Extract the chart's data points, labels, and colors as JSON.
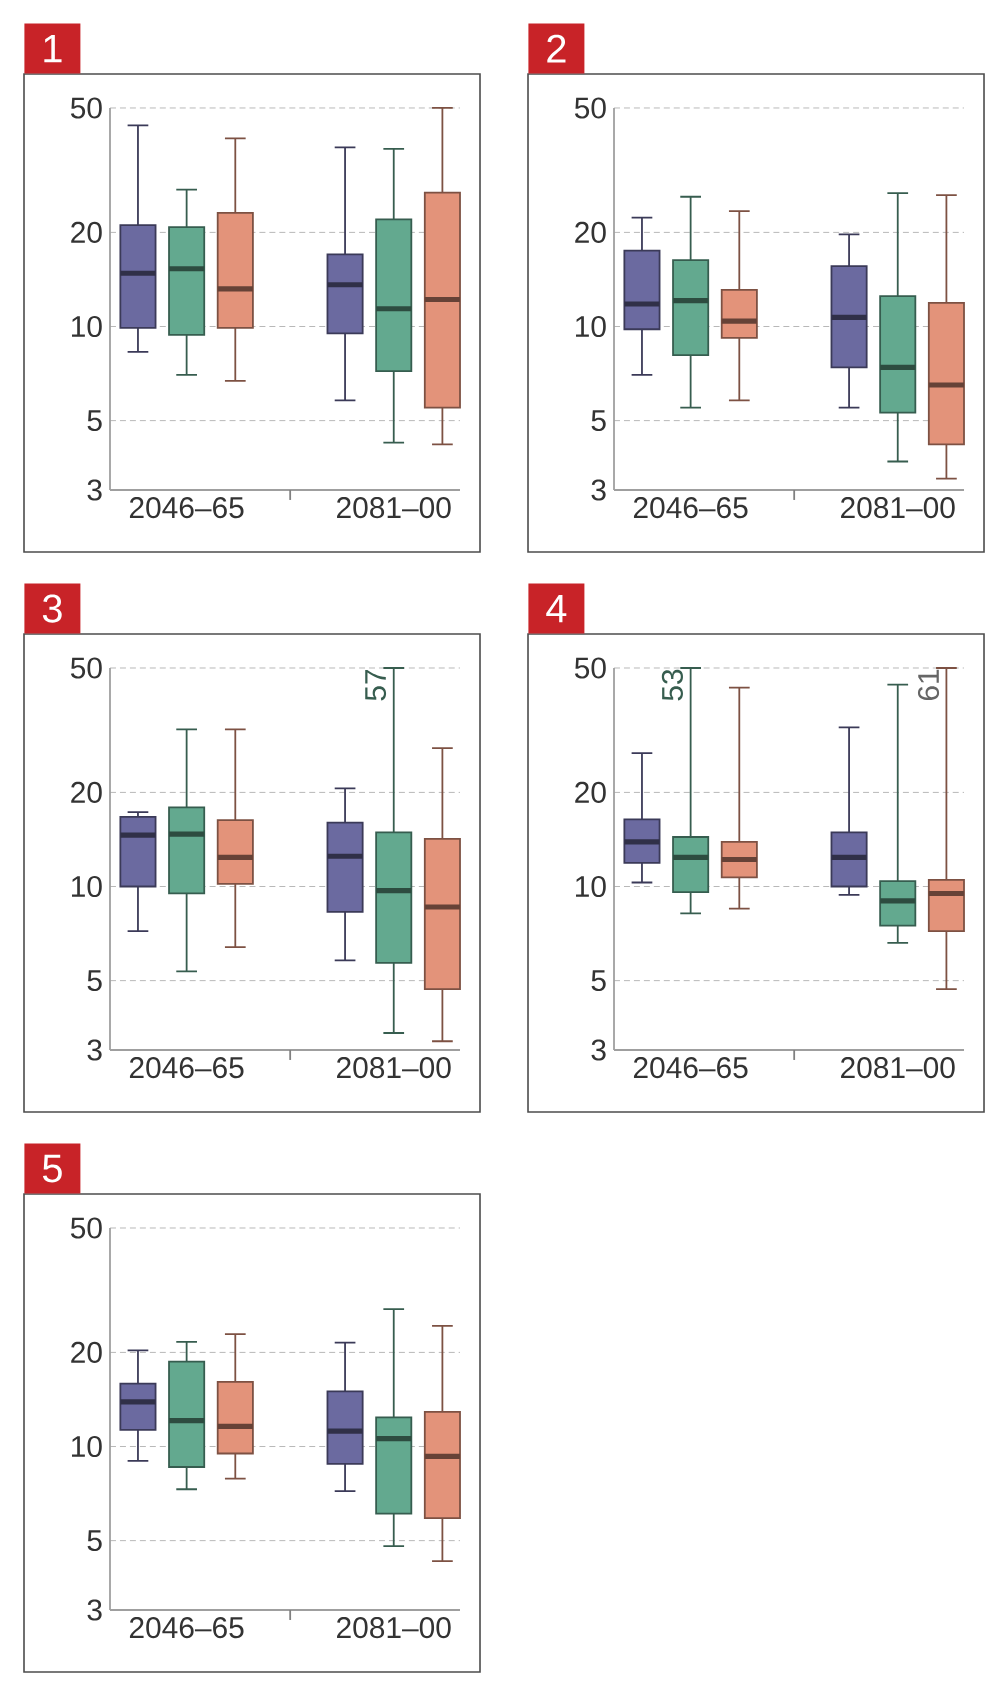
{
  "chart_data": [
    {
      "type": "box",
      "title": "1",
      "categories": [
        "2046–65",
        "2081–00"
      ],
      "log": "y",
      "grid": "y",
      "ylim": [
        3,
        50
      ],
      "yticks": [
        3,
        5,
        10,
        20,
        50
      ],
      "series": [
        {
          "color": "#6b6aa0",
          "boxes": [
            {
              "low": 8.3,
              "q1": 9.9,
              "median": 14.8,
              "q3": 21.1,
              "high": 44
            },
            {
              "low": 5.8,
              "q1": 9.5,
              "median": 13.6,
              "q3": 17,
              "high": 37.4
            }
          ]
        },
        {
          "color": "#63a98f",
          "boxes": [
            {
              "low": 7,
              "q1": 9.4,
              "median": 15.3,
              "q3": 20.8,
              "high": 27.4
            },
            {
              "low": 4.25,
              "q1": 7.2,
              "median": 11.4,
              "q3": 22,
              "high": 37
            }
          ]
        },
        {
          "color": "#e3937a",
          "boxes": [
            {
              "low": 6.7,
              "q1": 9.9,
              "median": 13.2,
              "q3": 23.1,
              "high": 40
            },
            {
              "low": 4.2,
              "q1": 5.5,
              "median": 12.2,
              "q3": 26.8,
              "high": 50
            }
          ]
        }
      ]
    },
    {
      "type": "box",
      "title": "2",
      "categories": [
        "2046–65",
        "2081–00"
      ],
      "log": "y",
      "grid": "y",
      "ylim": [
        3,
        50
      ],
      "yticks": [
        3,
        5,
        10,
        20,
        50
      ],
      "series": [
        {
          "color": "#6b6aa0",
          "boxes": [
            {
              "low": 7,
              "q1": 9.8,
              "median": 11.8,
              "q3": 17.5,
              "high": 22.3
            },
            {
              "low": 5.5,
              "q1": 7.4,
              "median": 10.7,
              "q3": 15.6,
              "high": 19.7
            }
          ]
        },
        {
          "color": "#63a98f",
          "boxes": [
            {
              "low": 5.5,
              "q1": 8.1,
              "median": 12.1,
              "q3": 16.3,
              "high": 26
            },
            {
              "low": 3.7,
              "q1": 5.3,
              "median": 7.4,
              "q3": 12.5,
              "high": 26.7
            }
          ]
        },
        {
          "color": "#e3937a",
          "boxes": [
            {
              "low": 5.8,
              "q1": 9.2,
              "median": 10.4,
              "q3": 13.1,
              "high": 23.4
            },
            {
              "low": 3.26,
              "q1": 4.2,
              "median": 6.5,
              "q3": 11.9,
              "high": 26.3
            }
          ]
        }
      ]
    },
    {
      "type": "box",
      "title": "3",
      "categories": [
        "2046–65",
        "2081–00"
      ],
      "log": "y",
      "grid": "y",
      "ylim": [
        3,
        50
      ],
      "yticks": [
        3,
        5,
        10,
        20,
        50
      ],
      "annotations": [
        {
          "text": "57",
          "x": "2081–00",
          "y": 50
        }
      ],
      "series": [
        {
          "color": "#6b6aa0",
          "boxes": [
            {
              "low": 7.2,
              "q1": 10,
              "median": 14.6,
              "q3": 16.7,
              "high": 17.3
            },
            {
              "low": 5.8,
              "q1": 8.3,
              "median": 12.5,
              "q3": 16,
              "high": 20.6
            }
          ]
        },
        {
          "color": "#63a98f",
          "boxes": [
            {
              "low": 5.35,
              "q1": 9.5,
              "median": 14.7,
              "q3": 17.9,
              "high": 31.8
            },
            {
              "low": 3.4,
              "q1": 5.7,
              "median": 9.7,
              "q3": 14.9,
              "high": 50
            }
          ]
        },
        {
          "color": "#e3937a",
          "boxes": [
            {
              "low": 6.4,
              "q1": 10.2,
              "median": 12.4,
              "q3": 16.3,
              "high": 31.8
            },
            {
              "low": 3.2,
              "q1": 4.7,
              "median": 8.6,
              "q3": 14.2,
              "high": 27.7
            }
          ]
        }
      ]
    },
    {
      "type": "box",
      "title": "4",
      "categories": [
        "2046–65",
        "2081–00"
      ],
      "log": "y",
      "grid": "y",
      "ylim": [
        3,
        50
      ],
      "yticks": [
        3,
        5,
        10,
        20,
        50
      ],
      "annotations": [
        {
          "text": "53",
          "x": "2046–65",
          "y": 50
        },
        "61"
      ],
      "series": [
        {
          "color": "#6b6aa0",
          "boxes": [
            {
              "low": 10.3,
              "q1": 11.9,
              "median": 13.9,
              "q3": 16.4,
              "high": 26.7
            },
            {
              "low": 9.4,
              "q1": 10,
              "median": 12.4,
              "q3": 14.9,
              "high": 32.3
            }
          ]
        },
        {
          "color": "#63a98f",
          "boxes": [
            {
              "low": 8.2,
              "q1": 9.6,
              "median": 12.4,
              "q3": 14.4,
              "high": 50
            },
            {
              "low": 6.6,
              "q1": 7.5,
              "median": 9,
              "q3": 10.4,
              "high": 44.2
            }
          ]
        },
        {
          "color": "#e3937a",
          "boxes": [
            {
              "low": 8.5,
              "q1": 10.7,
              "median": 12.2,
              "q3": 13.9,
              "high": 43.3
            },
            {
              "low": 4.7,
              "q1": 7.2,
              "median": 9.5,
              "q3": 10.5,
              "high": 50
            }
          ]
        }
      ]
    },
    {
      "type": "box",
      "title": "5",
      "categories": [
        "2046–65",
        "2081–00"
      ],
      "log": "y",
      "grid": "y",
      "ylim": [
        3,
        50
      ],
      "yticks": [
        3,
        5,
        10,
        20,
        50
      ],
      "series": [
        {
          "color": "#6b6aa0",
          "boxes": [
            {
              "low": 9,
              "q1": 11.3,
              "median": 13.9,
              "q3": 15.9,
              "high": 20.3
            },
            {
              "low": 7.2,
              "q1": 8.8,
              "median": 11.2,
              "q3": 15,
              "high": 21.5
            }
          ]
        },
        {
          "color": "#63a98f",
          "boxes": [
            {
              "low": 7.3,
              "q1": 8.6,
              "median": 12.1,
              "q3": 18.7,
              "high": 21.6
            },
            {
              "low": 4.8,
              "q1": 6.1,
              "median": 10.6,
              "q3": 12.4,
              "high": 27.5
            }
          ]
        },
        {
          "color": "#e3937a",
          "boxes": [
            {
              "low": 7.9,
              "q1": 9.5,
              "median": 11.6,
              "q3": 16.1,
              "high": 22.9
            },
            {
              "low": 4.3,
              "q1": 5.9,
              "median": 9.3,
              "q3": 12.9,
              "high": 24.3
            }
          ]
        }
      ]
    }
  ]
}
